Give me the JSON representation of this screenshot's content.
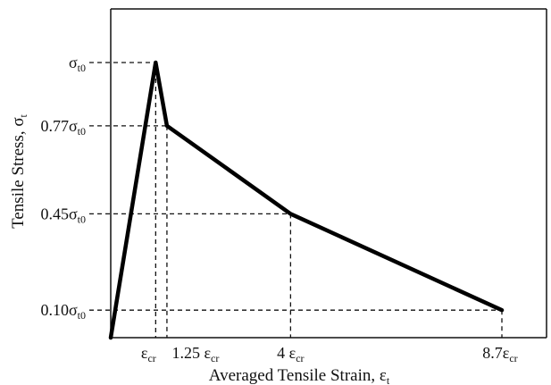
{
  "chart_data": {
    "type": "line",
    "xlabel": "Averaged Tensile Strain, ε",
    "xlabel_sub": "t",
    "ylabel": "Tensile Stress, σ",
    "ylabel_sub": "t",
    "x_unit": "ε_cr",
    "y_unit": "σ_t0",
    "xlim": [
      0,
      8.9
    ],
    "ylim": [
      0,
      1.08
    ],
    "grid": false,
    "series": [
      {
        "x": [
          0,
          1.0,
          1.25,
          4.0,
          8.7
        ],
        "y": [
          0,
          1.0,
          0.77,
          0.45,
          0.1
        ]
      }
    ],
    "x_ticks": [
      {
        "value": 1.0,
        "main": "ε",
        "sub": "cr"
      },
      {
        "value": 1.25,
        "main": "1.25 ε",
        "sub": "cr"
      },
      {
        "value": 4.0,
        "main": "4 ε",
        "sub": "cr"
      },
      {
        "value": 8.7,
        "main": "8.7ε",
        "sub": "cr"
      }
    ],
    "y_ticks": [
      {
        "value": 1.0,
        "main": "σ",
        "sub": "t0"
      },
      {
        "value": 0.77,
        "main": "0.77σ",
        "sub": "t0"
      },
      {
        "value": 0.45,
        "main": "0.45σ",
        "sub": "t0"
      },
      {
        "value": 0.1,
        "main": "0.10σ",
        "sub": "t0"
      }
    ]
  }
}
